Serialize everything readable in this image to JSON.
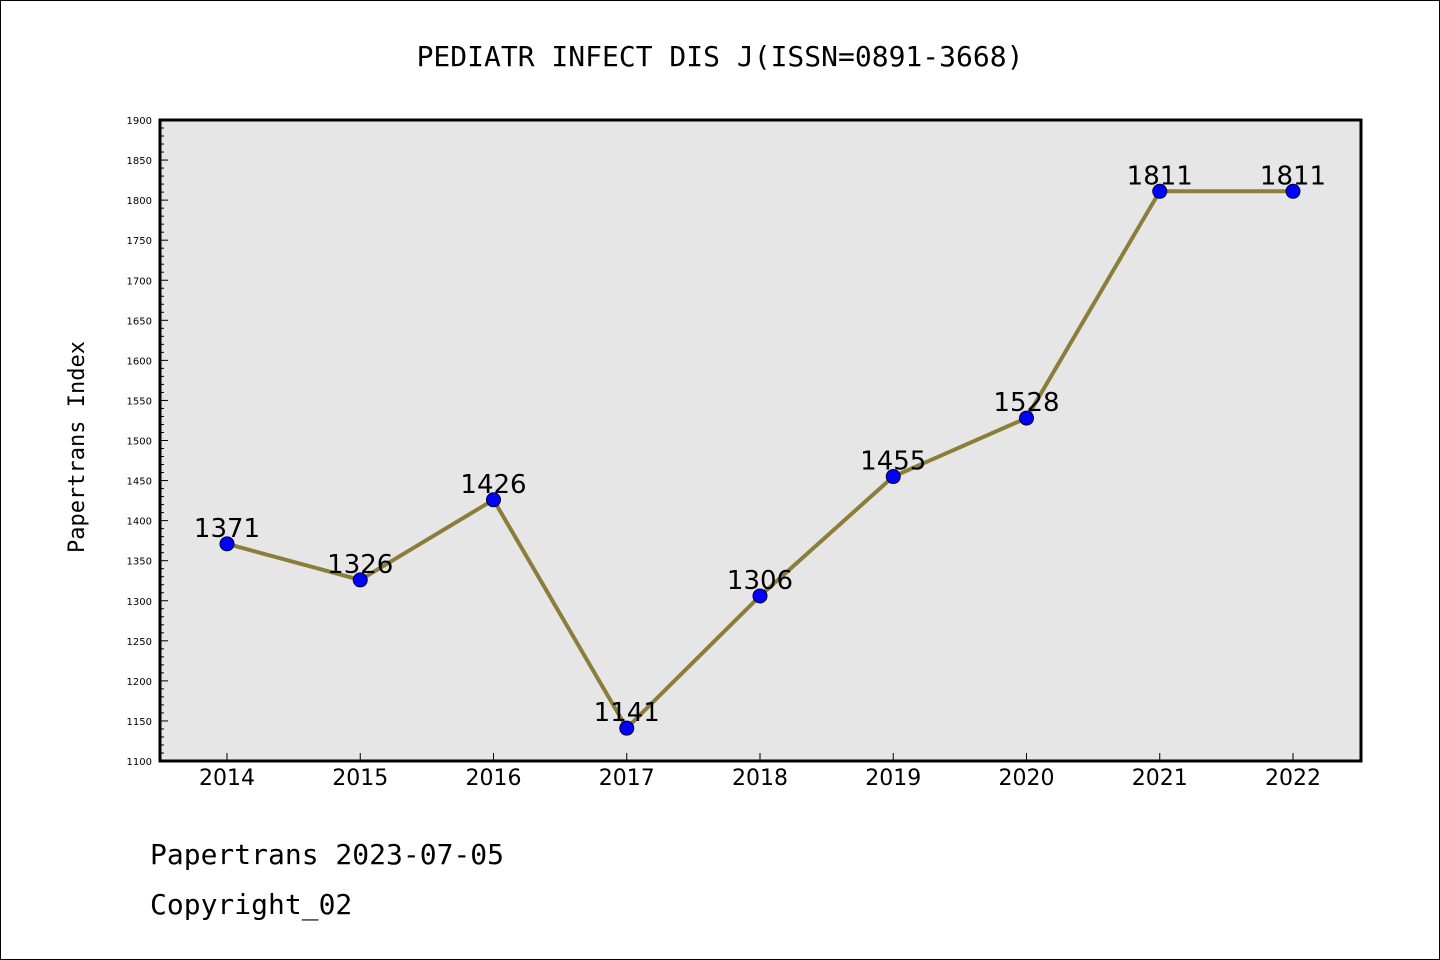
{
  "chart_data": {
    "type": "line",
    "title": "PEDIATR INFECT DIS J(ISSN=0891-3668)",
    "xlabel": "",
    "ylabel": "Papertrans Index",
    "categories": [
      "2014",
      "2015",
      "2016",
      "2017",
      "2018",
      "2019",
      "2020",
      "2021",
      "2022"
    ],
    "series": [
      {
        "values": [
          1371,
          1326,
          1426,
          1141,
          1306,
          1455,
          1528,
          1811,
          1811
        ]
      }
    ],
    "ylim": [
      1100,
      1900
    ],
    "yticks": [
      1100,
      1150,
      1200,
      1250,
      1300,
      1350,
      1400,
      1450,
      1500,
      1550,
      1600,
      1650,
      1700,
      1750,
      1800,
      1850,
      1900
    ],
    "grid": false,
    "colors": {
      "line": "#8b7d3a",
      "marker": "#0000ff",
      "plot_background": "#e6e6e6"
    }
  },
  "footer": {
    "line1": "Papertrans 2023-07-05",
    "line2": "Copyright_02"
  }
}
